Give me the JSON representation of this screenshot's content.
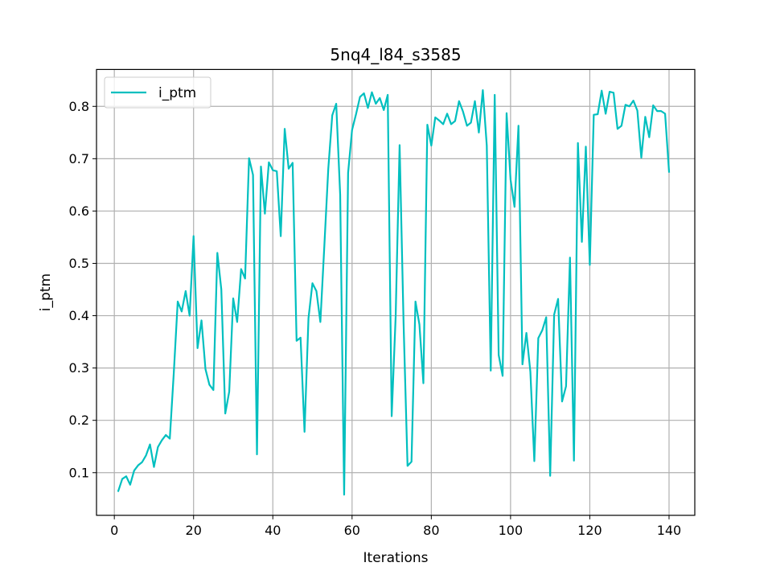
{
  "chart_data": {
    "type": "line",
    "title": "5nq4_l84_s3585",
    "xlabel": "Iterations",
    "ylabel": "i_ptm",
    "xlim": [
      -4.5,
      146.5
    ],
    "ylim": [
      0.0185,
      0.8705
    ],
    "xticks": [
      0,
      20,
      40,
      60,
      80,
      100,
      120,
      140
    ],
    "yticks": [
      0.1,
      0.2,
      0.3,
      0.4,
      0.5,
      0.6,
      0.7,
      0.8
    ],
    "grid": true,
    "legend": {
      "position": "top-left",
      "entries": [
        "i_ptm"
      ]
    },
    "series": [
      {
        "name": "i_ptm",
        "color": "#00bfbf",
        "x": [
          1,
          2,
          3,
          4,
          5,
          6,
          7,
          8,
          9,
          10,
          11,
          12,
          13,
          14,
          15,
          16,
          17,
          18,
          19,
          20,
          21,
          22,
          23,
          24,
          25,
          26,
          27,
          28,
          29,
          30,
          31,
          32,
          33,
          34,
          35,
          36,
          37,
          38,
          39,
          40,
          41,
          42,
          43,
          44,
          45,
          46,
          47,
          48,
          49,
          50,
          51,
          52,
          53,
          54,
          55,
          56,
          57,
          58,
          59,
          60,
          61,
          62,
          63,
          64,
          65,
          66,
          67,
          68,
          69,
          70,
          71,
          72,
          73,
          74,
          75,
          76,
          77,
          78,
          79,
          80,
          81,
          82,
          83,
          84,
          85,
          86,
          87,
          88,
          89,
          90,
          91,
          92,
          93,
          94,
          95,
          96,
          97,
          98,
          99,
          100,
          101,
          102,
          103,
          104,
          105,
          106,
          107,
          108,
          109,
          110,
          111,
          112,
          113,
          114,
          115,
          116,
          117,
          118,
          119,
          120,
          121,
          122,
          123,
          124,
          125,
          126,
          127,
          128,
          129,
          130,
          131,
          132,
          133,
          134,
          135,
          136,
          137,
          138,
          139,
          140
        ],
        "y": [
          0.065,
          0.088,
          0.093,
          0.077,
          0.104,
          0.114,
          0.12,
          0.133,
          0.154,
          0.111,
          0.149,
          0.162,
          0.172,
          0.165,
          0.29,
          0.427,
          0.408,
          0.447,
          0.4,
          0.552,
          0.338,
          0.391,
          0.298,
          0.268,
          0.258,
          0.52,
          0.45,
          0.213,
          0.255,
          0.433,
          0.388,
          0.489,
          0.471,
          0.701,
          0.669,
          0.135,
          0.685,
          0.595,
          0.693,
          0.678,
          0.676,
          0.552,
          0.757,
          0.681,
          0.692,
          0.352,
          0.358,
          0.178,
          0.395,
          0.462,
          0.447,
          0.388,
          0.533,
          0.681,
          0.783,
          0.805,
          0.631,
          0.058,
          0.673,
          0.755,
          0.785,
          0.818,
          0.825,
          0.797,
          0.827,
          0.805,
          0.816,
          0.793,
          0.822,
          0.208,
          0.398,
          0.726,
          0.386,
          0.113,
          0.121,
          0.427,
          0.383,
          0.271,
          0.765,
          0.725,
          0.779,
          0.773,
          0.766,
          0.786,
          0.766,
          0.772,
          0.81,
          0.79,
          0.763,
          0.769,
          0.81,
          0.75,
          0.831,
          0.725,
          0.295,
          0.822,
          0.325,
          0.285,
          0.787,
          0.66,
          0.608,
          0.763,
          0.307,
          0.367,
          0.293,
          0.122,
          0.357,
          0.372,
          0.397,
          0.094,
          0.402,
          0.432,
          0.236,
          0.265,
          0.511,
          0.123,
          0.73,
          0.541,
          0.723,
          0.497,
          0.784,
          0.785,
          0.83,
          0.786,
          0.828,
          0.826,
          0.757,
          0.763,
          0.803,
          0.8,
          0.811,
          0.792,
          0.702,
          0.78,
          0.741,
          0.802,
          0.791,
          0.791,
          0.786,
          0.675
        ]
      }
    ]
  }
}
